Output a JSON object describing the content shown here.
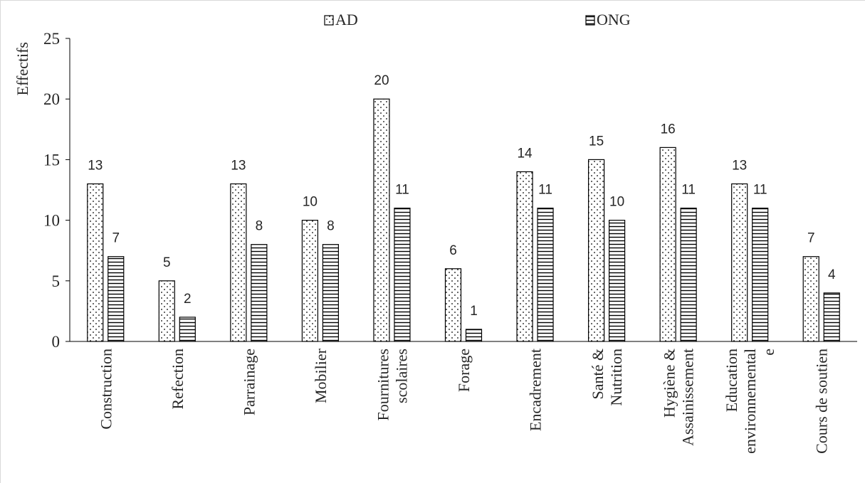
{
  "chart_data": {
    "type": "bar",
    "ylabel": "Effectifs",
    "ylim": [
      0,
      25
    ],
    "yticks": [
      0,
      5,
      10,
      15,
      20,
      25
    ],
    "grid": false,
    "legend_position": "top",
    "categories": [
      [
        "Construction"
      ],
      [
        "Refection"
      ],
      [
        "Parrainage"
      ],
      [
        "Mobilier"
      ],
      [
        "Fournitures",
        "scolaires"
      ],
      [
        "Forage"
      ],
      [
        "Encadrement"
      ],
      [
        "Santé &",
        "Nutrition"
      ],
      [
        "Hygiène &",
        "Assainissement"
      ],
      [
        "Education",
        "environnemental",
        "e"
      ],
      [
        "Cours de soutien"
      ]
    ],
    "series": [
      {
        "name": "AD",
        "pattern": "dots",
        "values": [
          13,
          5,
          13,
          10,
          20,
          6,
          14,
          15,
          16,
          13,
          7
        ]
      },
      {
        "name": "ONG",
        "pattern": "horizontal-lines",
        "values": [
          7,
          2,
          8,
          8,
          11,
          1,
          11,
          10,
          11,
          11,
          4
        ]
      }
    ],
    "colors": {
      "stroke": "#000000",
      "axis": "#000000",
      "text": "#262626",
      "border": "#d9d9d9"
    }
  }
}
